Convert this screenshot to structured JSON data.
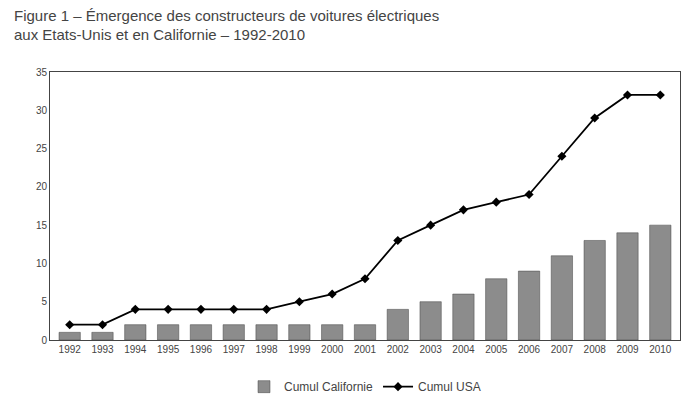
{
  "chart_data": {
    "type": "bar",
    "title": "Figure 1 – Émergence des constructeurs de voitures électriques\naux Etats-Unis et en Californie – 1992-2010",
    "x": [
      1992,
      1993,
      1994,
      1995,
      1996,
      1997,
      1998,
      1999,
      2000,
      2001,
      2002,
      2003,
      2004,
      2005,
      2006,
      2007,
      2008,
      2009,
      2010
    ],
    "series": [
      {
        "name": "Cumul Californie",
        "type": "bar",
        "color": "#8c8c8c",
        "values": [
          1,
          1,
          2,
          2,
          2,
          2,
          2,
          2,
          2,
          2,
          4,
          5,
          6,
          8,
          9,
          11,
          13,
          14,
          15
        ]
      },
      {
        "name": "Cumul USA",
        "type": "line",
        "color": "#000000",
        "marker": "diamond",
        "line_style": "solid",
        "values": [
          2,
          2,
          4,
          4,
          4,
          4,
          4,
          5,
          6,
          8,
          13,
          15,
          17,
          18,
          19,
          24,
          29,
          32,
          32
        ]
      }
    ],
    "xlim": [
      1991.4,
      2010.6
    ],
    "xticks": [
      1992,
      1993,
      1994,
      1995,
      1996,
      1997,
      1998,
      1999,
      2000,
      2001,
      2002,
      2003,
      2004,
      2005,
      2006,
      2007,
      2008,
      2009,
      2010
    ],
    "ylim": [
      0,
      35
    ],
    "yticks": [
      0,
      5,
      10,
      15,
      20,
      25,
      30,
      35
    ],
    "grid": false,
    "legend": "bottom"
  }
}
